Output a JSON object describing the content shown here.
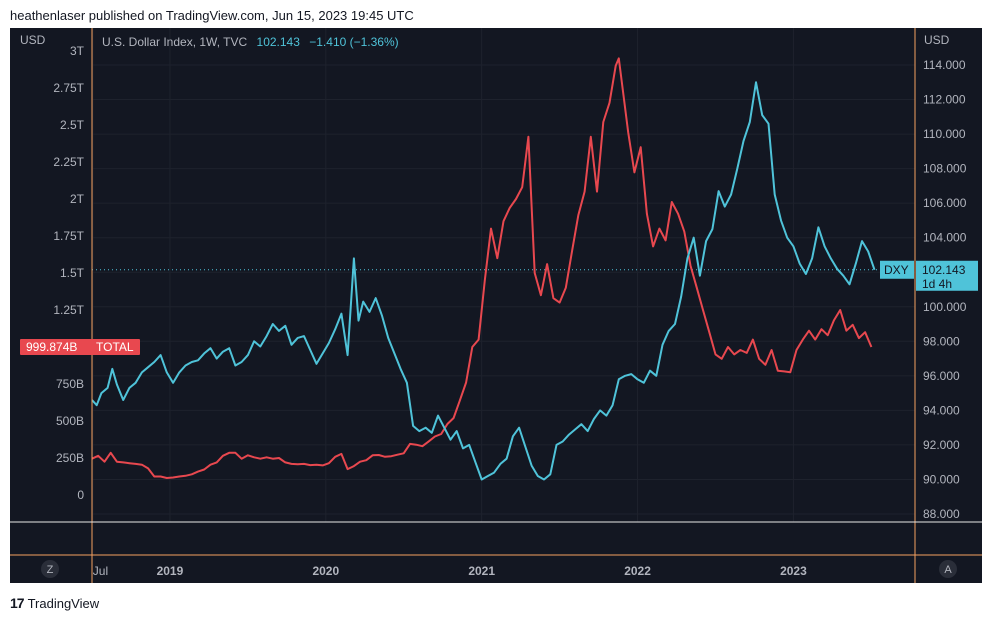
{
  "header": {
    "published_by": "heathenlaser published on TradingView.com, Jun 15, 2023 19:45 UTC"
  },
  "footer": {
    "brand": "TradingView",
    "brand_mark": "17"
  },
  "legend": {
    "symbol": "U.S. Dollar Index, 1W, TVC",
    "last": "102.143",
    "change": "−1.410 (−1.36%)"
  },
  "left_axis": {
    "title": "USD",
    "ticks": [
      "0",
      "250B",
      "500B",
      "750B",
      "1T",
      "1.25T",
      "1.5T",
      "1.75T",
      "2T",
      "2.25T",
      "2.5T",
      "2.75T",
      "3T"
    ],
    "values": [
      0,
      250,
      500,
      750,
      1000,
      1250,
      1500,
      1750,
      2000,
      2250,
      2500,
      2750,
      3000
    ]
  },
  "right_axis": {
    "title": "USD",
    "ticks": [
      "88.000",
      "90.000",
      "92.000",
      "94.000",
      "96.000",
      "98.000",
      "100.000",
      "102.000",
      "104.000",
      "106.000",
      "108.000",
      "110.000",
      "112.000",
      "114.000"
    ],
    "values": [
      88,
      90,
      92,
      94,
      96,
      98,
      100,
      102,
      104,
      106,
      108,
      110,
      112,
      114
    ]
  },
  "x_axis": {
    "ticks": [
      "Jul",
      "2019",
      "2020",
      "2021",
      "2022",
      "2023"
    ]
  },
  "badges": {
    "total_value": "999.874B",
    "total_label": "TOTAL",
    "dxy_label": "DXY",
    "dxy_value": "102.143",
    "dxy_countdown": "1d 4h"
  },
  "corner_buttons": {
    "left": "Z",
    "right": "A"
  },
  "colors": {
    "background": "#131722",
    "grid": "#1e222d",
    "text": "#b2b5be",
    "dxy_line": "#4fc3d9",
    "total_line": "#e8484f",
    "frame_accent": "#f5a060"
  },
  "chart_data": {
    "type": "line",
    "x_unit": "year",
    "xlim": [
      2018.5,
      2023.78
    ],
    "series": [
      {
        "name": "DXY",
        "axis": "right",
        "unit": "index",
        "points": [
          [
            2018.5,
            94.6
          ],
          [
            2018.53,
            94.3
          ],
          [
            2018.56,
            95.0
          ],
          [
            2018.6,
            95.3
          ],
          [
            2018.63,
            96.4
          ],
          [
            2018.66,
            95.5
          ],
          [
            2018.7,
            94.6
          ],
          [
            2018.74,
            95.3
          ],
          [
            2018.78,
            95.6
          ],
          [
            2018.82,
            96.2
          ],
          [
            2018.86,
            96.5
          ],
          [
            2018.9,
            96.8
          ],
          [
            2018.94,
            97.2
          ],
          [
            2018.98,
            96.2
          ],
          [
            2019.02,
            95.6
          ],
          [
            2019.06,
            96.2
          ],
          [
            2019.1,
            96.6
          ],
          [
            2019.14,
            96.8
          ],
          [
            2019.18,
            96.9
          ],
          [
            2019.22,
            97.3
          ],
          [
            2019.26,
            97.6
          ],
          [
            2019.3,
            97.0
          ],
          [
            2019.34,
            97.4
          ],
          [
            2019.38,
            97.6
          ],
          [
            2019.42,
            96.6
          ],
          [
            2019.46,
            96.8
          ],
          [
            2019.5,
            97.2
          ],
          [
            2019.54,
            98.0
          ],
          [
            2019.58,
            97.7
          ],
          [
            2019.62,
            98.3
          ],
          [
            2019.66,
            99.0
          ],
          [
            2019.7,
            98.6
          ],
          [
            2019.74,
            98.9
          ],
          [
            2019.78,
            97.8
          ],
          [
            2019.82,
            98.2
          ],
          [
            2019.86,
            98.3
          ],
          [
            2019.9,
            97.5
          ],
          [
            2019.94,
            96.7
          ],
          [
            2019.98,
            97.3
          ],
          [
            2020.02,
            97.9
          ],
          [
            2020.06,
            98.7
          ],
          [
            2020.1,
            99.6
          ],
          [
            2020.14,
            97.2
          ],
          [
            2020.18,
            102.8
          ],
          [
            2020.21,
            99.2
          ],
          [
            2020.24,
            100.3
          ],
          [
            2020.28,
            99.7
          ],
          [
            2020.32,
            100.5
          ],
          [
            2020.36,
            99.5
          ],
          [
            2020.4,
            98.2
          ],
          [
            2020.44,
            97.3
          ],
          [
            2020.48,
            96.4
          ],
          [
            2020.52,
            95.6
          ],
          [
            2020.56,
            93.1
          ],
          [
            2020.6,
            92.8
          ],
          [
            2020.64,
            93.0
          ],
          [
            2020.68,
            92.7
          ],
          [
            2020.72,
            93.7
          ],
          [
            2020.76,
            93.0
          ],
          [
            2020.8,
            92.3
          ],
          [
            2020.84,
            92.8
          ],
          [
            2020.88,
            91.8
          ],
          [
            2020.92,
            92.0
          ],
          [
            2020.96,
            91.0
          ],
          [
            2021.0,
            90.0
          ],
          [
            2021.04,
            90.2
          ],
          [
            2021.08,
            90.4
          ],
          [
            2021.12,
            90.9
          ],
          [
            2021.16,
            91.2
          ],
          [
            2021.2,
            92.5
          ],
          [
            2021.24,
            93.0
          ],
          [
            2021.28,
            91.9
          ],
          [
            2021.32,
            90.8
          ],
          [
            2021.36,
            90.2
          ],
          [
            2021.4,
            90.0
          ],
          [
            2021.44,
            90.3
          ],
          [
            2021.48,
            92.0
          ],
          [
            2021.52,
            92.2
          ],
          [
            2021.56,
            92.6
          ],
          [
            2021.6,
            92.9
          ],
          [
            2021.64,
            93.2
          ],
          [
            2021.68,
            92.8
          ],
          [
            2021.72,
            93.5
          ],
          [
            2021.76,
            94.0
          ],
          [
            2021.8,
            93.7
          ],
          [
            2021.84,
            94.3
          ],
          [
            2021.88,
            95.8
          ],
          [
            2021.92,
            96.0
          ],
          [
            2021.96,
            96.1
          ],
          [
            2022.0,
            95.8
          ],
          [
            2022.04,
            95.6
          ],
          [
            2022.08,
            96.3
          ],
          [
            2022.12,
            96.0
          ],
          [
            2022.16,
            97.8
          ],
          [
            2022.2,
            98.6
          ],
          [
            2022.24,
            99.0
          ],
          [
            2022.28,
            100.6
          ],
          [
            2022.32,
            102.8
          ],
          [
            2022.36,
            104.0
          ],
          [
            2022.4,
            101.8
          ],
          [
            2022.44,
            103.8
          ],
          [
            2022.48,
            104.5
          ],
          [
            2022.52,
            106.7
          ],
          [
            2022.56,
            105.8
          ],
          [
            2022.6,
            106.5
          ],
          [
            2022.64,
            108.0
          ],
          [
            2022.68,
            109.6
          ],
          [
            2022.72,
            110.7
          ],
          [
            2022.76,
            113.0
          ],
          [
            2022.8,
            111.1
          ],
          [
            2022.84,
            110.6
          ],
          [
            2022.88,
            106.5
          ],
          [
            2022.92,
            105.0
          ],
          [
            2022.96,
            104.0
          ],
          [
            2023.0,
            103.5
          ],
          [
            2023.04,
            102.5
          ],
          [
            2023.08,
            101.9
          ],
          [
            2023.12,
            102.8
          ],
          [
            2023.16,
            104.6
          ],
          [
            2023.2,
            103.5
          ],
          [
            2023.24,
            102.8
          ],
          [
            2023.28,
            102.2
          ],
          [
            2023.32,
            101.8
          ],
          [
            2023.36,
            101.3
          ],
          [
            2023.4,
            102.5
          ],
          [
            2023.44,
            103.8
          ],
          [
            2023.48,
            103.2
          ],
          [
            2023.52,
            102.143
          ]
        ]
      },
      {
        "name": "TOTAL",
        "axis": "left",
        "unit": "USD (billions)",
        "points": [
          [
            2018.5,
            245
          ],
          [
            2018.54,
            265
          ],
          [
            2018.58,
            225
          ],
          [
            2018.62,
            285
          ],
          [
            2018.66,
            225
          ],
          [
            2018.7,
            220
          ],
          [
            2018.74,
            215
          ],
          [
            2018.78,
            210
          ],
          [
            2018.82,
            205
          ],
          [
            2018.86,
            180
          ],
          [
            2018.9,
            125
          ],
          [
            2018.94,
            125
          ],
          [
            2018.98,
            115
          ],
          [
            2019.02,
            118
          ],
          [
            2019.06,
            125
          ],
          [
            2019.1,
            130
          ],
          [
            2019.14,
            140
          ],
          [
            2019.18,
            158
          ],
          [
            2019.22,
            172
          ],
          [
            2019.26,
            205
          ],
          [
            2019.3,
            220
          ],
          [
            2019.34,
            265
          ],
          [
            2019.38,
            285
          ],
          [
            2019.42,
            285
          ],
          [
            2019.46,
            245
          ],
          [
            2019.5,
            268
          ],
          [
            2019.54,
            255
          ],
          [
            2019.58,
            245
          ],
          [
            2019.62,
            255
          ],
          [
            2019.66,
            245
          ],
          [
            2019.7,
            250
          ],
          [
            2019.74,
            220
          ],
          [
            2019.78,
            210
          ],
          [
            2019.82,
            208
          ],
          [
            2019.86,
            210
          ],
          [
            2019.9,
            202
          ],
          [
            2019.94,
            205
          ],
          [
            2019.98,
            200
          ],
          [
            2020.02,
            215
          ],
          [
            2020.06,
            258
          ],
          [
            2020.1,
            278
          ],
          [
            2020.14,
            175
          ],
          [
            2020.18,
            195
          ],
          [
            2020.22,
            225
          ],
          [
            2020.26,
            235
          ],
          [
            2020.3,
            268
          ],
          [
            2020.34,
            270
          ],
          [
            2020.38,
            258
          ],
          [
            2020.42,
            262
          ],
          [
            2020.46,
            272
          ],
          [
            2020.5,
            282
          ],
          [
            2020.54,
            345
          ],
          [
            2020.58,
            340
          ],
          [
            2020.62,
            330
          ],
          [
            2020.66,
            362
          ],
          [
            2020.7,
            395
          ],
          [
            2020.74,
            412
          ],
          [
            2020.78,
            480
          ],
          [
            2020.82,
            520
          ],
          [
            2020.86,
            640
          ],
          [
            2020.9,
            760
          ],
          [
            2020.94,
            1000
          ],
          [
            2020.98,
            1050
          ],
          [
            2021.02,
            1450
          ],
          [
            2021.06,
            1800
          ],
          [
            2021.1,
            1600
          ],
          [
            2021.14,
            1850
          ],
          [
            2021.18,
            1940
          ],
          [
            2021.22,
            2000
          ],
          [
            2021.26,
            2080
          ],
          [
            2021.3,
            2420
          ],
          [
            2021.34,
            1500
          ],
          [
            2021.38,
            1350
          ],
          [
            2021.42,
            1560
          ],
          [
            2021.46,
            1330
          ],
          [
            2021.5,
            1300
          ],
          [
            2021.54,
            1400
          ],
          [
            2021.58,
            1650
          ],
          [
            2021.62,
            1890
          ],
          [
            2021.66,
            2050
          ],
          [
            2021.7,
            2420
          ],
          [
            2021.74,
            2050
          ],
          [
            2021.78,
            2520
          ],
          [
            2021.82,
            2650
          ],
          [
            2021.86,
            2900
          ],
          [
            2021.88,
            2950
          ],
          [
            2021.91,
            2700
          ],
          [
            2021.94,
            2450
          ],
          [
            2021.98,
            2180
          ],
          [
            2022.02,
            2350
          ],
          [
            2022.06,
            1900
          ],
          [
            2022.1,
            1680
          ],
          [
            2022.14,
            1800
          ],
          [
            2022.18,
            1720
          ],
          [
            2022.22,
            1980
          ],
          [
            2022.26,
            1900
          ],
          [
            2022.3,
            1780
          ],
          [
            2022.34,
            1550
          ],
          [
            2022.38,
            1400
          ],
          [
            2022.42,
            1250
          ],
          [
            2022.46,
            1100
          ],
          [
            2022.5,
            950
          ],
          [
            2022.54,
            920
          ],
          [
            2022.58,
            1000
          ],
          [
            2022.62,
            950
          ],
          [
            2022.66,
            980
          ],
          [
            2022.7,
            960
          ],
          [
            2022.74,
            1050
          ],
          [
            2022.78,
            920
          ],
          [
            2022.82,
            880
          ],
          [
            2022.86,
            980
          ],
          [
            2022.9,
            840
          ],
          [
            2022.94,
            835
          ],
          [
            2022.98,
            830
          ],
          [
            2023.02,
            980
          ],
          [
            2023.06,
            1050
          ],
          [
            2023.1,
            1110
          ],
          [
            2023.14,
            1050
          ],
          [
            2023.18,
            1120
          ],
          [
            2023.22,
            1080
          ],
          [
            2023.26,
            1180
          ],
          [
            2023.3,
            1250
          ],
          [
            2023.34,
            1110
          ],
          [
            2023.38,
            1150
          ],
          [
            2023.42,
            1060
          ],
          [
            2023.46,
            1100
          ],
          [
            2023.5,
            1000
          ]
        ]
      }
    ]
  }
}
